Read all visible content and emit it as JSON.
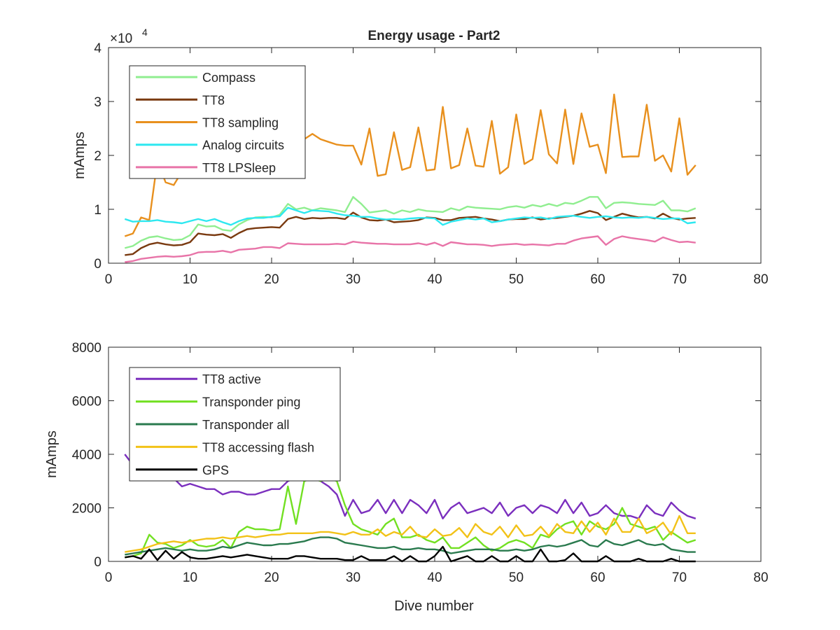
{
  "figure": {
    "title": "Energy usage - Part2"
  },
  "chart_data": [
    {
      "type": "line",
      "title": "Energy usage - Part2",
      "xlabel": "",
      "ylabel": "mAmps",
      "exponent_label": "×10",
      "exponent_power": "4",
      "xlim": [
        0,
        80
      ],
      "ylim": [
        0,
        40000
      ],
      "xticks": [
        0,
        10,
        20,
        30,
        40,
        50,
        60,
        70,
        80
      ],
      "yticks": [
        0,
        10000,
        20000,
        30000,
        40000
      ],
      "ytick_labels": [
        "0",
        "1",
        "2",
        "3",
        "4"
      ],
      "legend_position": "top-left",
      "grid": false,
      "series": [
        {
          "name": "Compass",
          "color": "#90EE90",
          "x_start": 2,
          "values": [
            2800,
            3200,
            4200,
            4800,
            5000,
            4600,
            4300,
            4400,
            5200,
            7200,
            6800,
            6900,
            6200,
            6000,
            7200,
            8000,
            8500,
            8600,
            8500,
            9000,
            11000,
            10000,
            10300,
            9800,
            10200,
            10000,
            9800,
            9500,
            12300,
            11000,
            9400,
            9600,
            9800,
            9200,
            9800,
            9500,
            10000,
            9700,
            9600,
            9500,
            10200,
            9800,
            10500,
            10300,
            10200,
            10100,
            10000,
            10400,
            10600,
            10300,
            10800,
            10500,
            11000,
            10600,
            11200,
            11000,
            11600,
            12300,
            12300,
            10200,
            11200,
            11300,
            11200,
            11000,
            10900,
            10800,
            11600,
            9800,
            9800,
            9600,
            10200
          ]
        },
        {
          "name": "TT8",
          "color": "#7A3A10",
          "x_start": 2,
          "values": [
            1500,
            1700,
            2800,
            3500,
            3800,
            3500,
            3300,
            3400,
            3900,
            5500,
            5300,
            5200,
            5400,
            4700,
            5600,
            6300,
            6500,
            6600,
            6700,
            6600,
            8200,
            8600,
            8200,
            8400,
            8300,
            8400,
            8400,
            8200,
            9400,
            8500,
            8000,
            7900,
            8100,
            7600,
            7700,
            7800,
            8000,
            8500,
            8400,
            8000,
            8000,
            8400,
            8500,
            8600,
            8300,
            8100,
            7800,
            8100,
            8200,
            8200,
            8500,
            8100,
            8300,
            8400,
            8600,
            8800,
            9200,
            9700,
            9300,
            8000,
            8600,
            9200,
            8800,
            8500,
            8600,
            8300,
            9200,
            8400,
            8100,
            8300,
            8400
          ]
        },
        {
          "name": "TT8 sampling",
          "color": "#E8901E",
          "x_start": 2,
          "values": [
            5000,
            5500,
            8500,
            8000,
            19000,
            15000,
            14500,
            17000,
            16800,
            18000,
            20000,
            21000,
            20000,
            21000,
            22500,
            23000,
            22500,
            21500,
            22000,
            22500,
            22500,
            23000,
            23000,
            24000,
            23000,
            22500,
            22000,
            21800,
            21800,
            18300,
            25000,
            16200,
            16500,
            24300,
            17300,
            17800,
            25200,
            17200,
            17400,
            29000,
            17600,
            18200,
            25000,
            18100,
            17900,
            26400,
            16600,
            17800,
            27600,
            18400,
            19300,
            28400,
            20200,
            18500,
            28500,
            18400,
            27800,
            21600,
            22000,
            16700,
            31300,
            19700,
            19800,
            19800,
            29400,
            19000,
            20000,
            17000,
            26900,
            16400,
            18200
          ]
        },
        {
          "name": "Analog circuits",
          "color": "#2EE8F0",
          "x_start": 2,
          "values": [
            8200,
            7700,
            7800,
            7800,
            8000,
            7700,
            7600,
            7400,
            7800,
            8200,
            7800,
            8200,
            7600,
            7100,
            7800,
            8300,
            8400,
            8400,
            8600,
            8700,
            10300,
            9800,
            9300,
            9800,
            9700,
            9600,
            9200,
            8900,
            8800,
            8600,
            8600,
            8300,
            8100,
            8200,
            8100,
            8300,
            8400,
            8400,
            8300,
            7100,
            7700,
            8000,
            8300,
            8100,
            8300,
            7600,
            7800,
            8100,
            8300,
            8500,
            8400,
            8500,
            8200,
            8600,
            8700,
            8800,
            8600,
            8400,
            8600,
            8700,
            8500,
            8400,
            8500,
            8400,
            8600,
            8400,
            8200,
            8300,
            8300,
            7400,
            7600
          ]
        },
        {
          "name": "TT8 LPSleep",
          "color": "#E874A8",
          "x_start": 2,
          "values": [
            200,
            400,
            800,
            1000,
            1200,
            1300,
            1200,
            1300,
            1500,
            2000,
            2100,
            2100,
            2300,
            2000,
            2500,
            2600,
            2700,
            3000,
            3000,
            2800,
            3700,
            3600,
            3500,
            3500,
            3500,
            3500,
            3600,
            3500,
            4000,
            3800,
            3700,
            3600,
            3600,
            3500,
            3500,
            3500,
            3700,
            3400,
            3800,
            3200,
            3900,
            3700,
            3500,
            3500,
            3400,
            3200,
            3400,
            3500,
            3600,
            3400,
            3500,
            3400,
            3300,
            3600,
            3600,
            4200,
            4600,
            4800,
            5000,
            3400,
            4500,
            5000,
            4700,
            4500,
            4300,
            4000,
            4800,
            4300,
            3900,
            4000,
            3800
          ]
        }
      ]
    },
    {
      "type": "line",
      "title": "",
      "xlabel": "Dive number",
      "ylabel": "mAmps",
      "xlim": [
        0,
        80
      ],
      "ylim": [
        0,
        8000
      ],
      "xticks": [
        0,
        10,
        20,
        30,
        40,
        50,
        60,
        70,
        80
      ],
      "yticks": [
        0,
        2000,
        4000,
        6000,
        8000
      ],
      "ytick_labels": [
        "0",
        "2000",
        "4000",
        "6000",
        "8000"
      ],
      "legend_position": "top-left",
      "grid": false,
      "series": [
        {
          "name": "TT8 active",
          "color": "#7B2FBE",
          "x_start": 2,
          "values": [
            4000,
            3600,
            3400,
            3300,
            3300,
            3200,
            3100,
            2800,
            2900,
            2800,
            2700,
            2700,
            2500,
            2600,
            2600,
            2500,
            2500,
            2600,
            2700,
            2700,
            3000,
            3100,
            3100,
            3100,
            3000,
            2800,
            2500,
            1700,
            2300,
            1800,
            1900,
            2300,
            1800,
            2300,
            1800,
            2300,
            2100,
            1800,
            2300,
            1600,
            2000,
            2200,
            1800,
            1900,
            2000,
            1800,
            2200,
            1700,
            2000,
            2100,
            1800,
            2100,
            2000,
            1800,
            2300,
            1800,
            2200,
            1700,
            1800,
            2100,
            1800,
            1700,
            1700,
            1600,
            2100,
            1800,
            1700,
            2200,
            1900,
            1700,
            1600
          ]
        },
        {
          "name": "Transponder ping",
          "color": "#72E022",
          "x_start": 2,
          "values": [
            150,
            200,
            300,
            1000,
            700,
            650,
            500,
            600,
            800,
            600,
            550,
            600,
            800,
            500,
            1100,
            1300,
            1200,
            1200,
            1150,
            1200,
            2800,
            1400,
            3000,
            3100,
            3000,
            3100,
            3000,
            2100,
            1400,
            1200,
            1100,
            1000,
            1400,
            1600,
            900,
            900,
            1000,
            800,
            700,
            900,
            500,
            500,
            700,
            900,
            600,
            400,
            500,
            700,
            800,
            700,
            500,
            1000,
            900,
            1200,
            1400,
            1500,
            1000,
            1500,
            1300,
            1200,
            1400,
            2000,
            1400,
            1300,
            1200,
            1300,
            800,
            1100,
            900,
            700,
            800
          ]
        },
        {
          "name": "Transponder all",
          "color": "#2A7A4E",
          "x_start": 2,
          "values": [
            250,
            300,
            350,
            400,
            450,
            500,
            450,
            400,
            450,
            400,
            400,
            450,
            550,
            500,
            600,
            700,
            650,
            600,
            600,
            650,
            650,
            700,
            750,
            850,
            900,
            900,
            850,
            700,
            650,
            600,
            550,
            500,
            500,
            550,
            450,
            450,
            500,
            450,
            450,
            400,
            300,
            350,
            400,
            450,
            450,
            450,
            400,
            400,
            450,
            400,
            450,
            550,
            600,
            550,
            600,
            700,
            800,
            600,
            550,
            800,
            650,
            600,
            700,
            800,
            650,
            600,
            650,
            450,
            400,
            350,
            350
          ]
        },
        {
          "name": "TT8 accessing flash",
          "color": "#F2C218",
          "x_start": 2,
          "values": [
            350,
            400,
            450,
            550,
            650,
            700,
            750,
            700,
            750,
            800,
            850,
            850,
            900,
            850,
            900,
            950,
            900,
            950,
            1000,
            1000,
            1050,
            1050,
            1050,
            1050,
            1100,
            1100,
            1050,
            1000,
            1100,
            1000,
            1000,
            1200,
            950,
            1100,
            1000,
            1300,
            950,
            900,
            1200,
            950,
            1000,
            1250,
            900,
            1400,
            1100,
            1000,
            1300,
            900,
            1350,
            950,
            1000,
            1300,
            950,
            1400,
            1100,
            1050,
            1500,
            1100,
            1450,
            1000,
            1600,
            1100,
            1100,
            1600,
            1050,
            1200,
            1450,
            1000,
            1700,
            1050,
            1050
          ]
        },
        {
          "name": "GPS",
          "color": "#000000",
          "x_start": 2,
          "values": [
            150,
            200,
            100,
            450,
            50,
            400,
            100,
            350,
            150,
            100,
            100,
            150,
            200,
            150,
            200,
            250,
            200,
            150,
            100,
            100,
            100,
            200,
            200,
            150,
            100,
            100,
            100,
            50,
            50,
            200,
            50,
            50,
            50,
            200,
            0,
            200,
            0,
            0,
            200,
            550,
            0,
            100,
            200,
            0,
            0,
            200,
            0,
            0,
            200,
            0,
            0,
            450,
            0,
            0,
            50,
            300,
            0,
            0,
            0,
            200,
            0,
            0,
            0,
            100,
            0,
            0,
            0,
            100,
            0,
            0,
            0
          ]
        }
      ]
    }
  ]
}
